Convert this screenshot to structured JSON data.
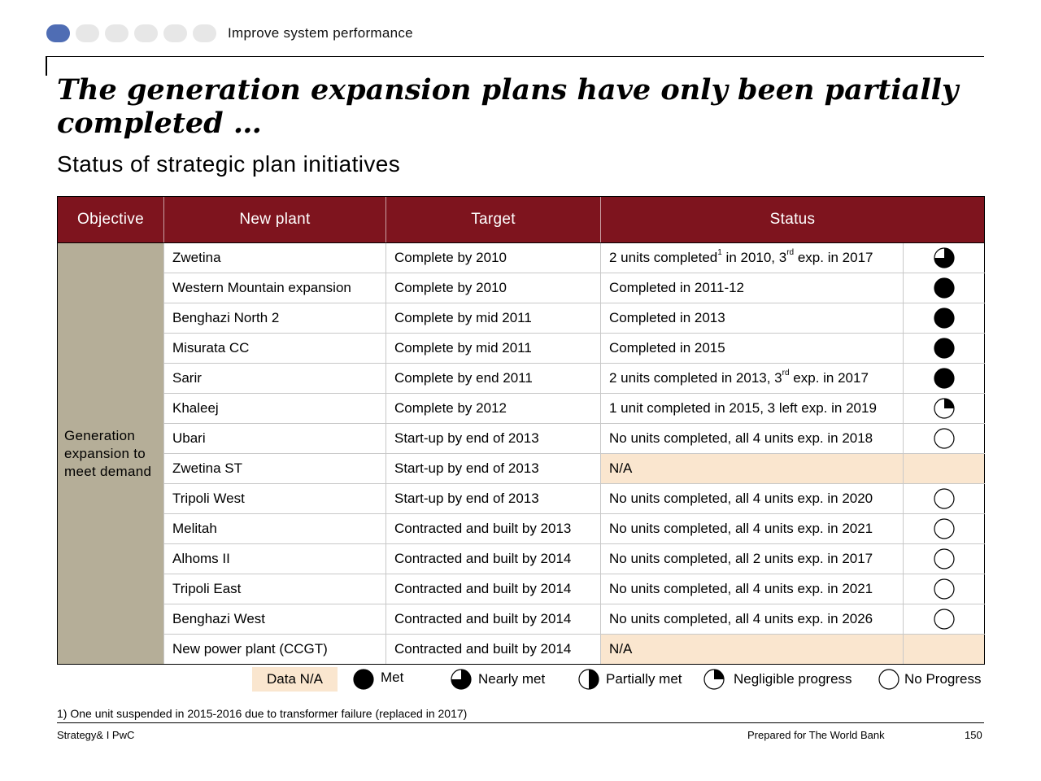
{
  "tracker": {
    "steps": [
      true,
      false,
      false,
      false,
      false,
      false
    ],
    "label": "Improve system performance",
    "active_color": "#4f6db4",
    "inactive_color": "#e7e7e7"
  },
  "title": "The generation expansion plans have only been partially completed …",
  "subtitle": "Status of strategic plan initiatives",
  "table": {
    "headers": [
      "Objective",
      "New plant",
      "Target",
      "Status"
    ],
    "objective": "Generation expansion to meet demand",
    "header_color": "#7e141e",
    "objective_color": "#b5ae98",
    "na_color": "#fae6cf",
    "rows": [
      {
        "plant": "Zwetina",
        "target": "Complete by 2010",
        "status_parts": [
          "2 units completed",
          "1",
          " in 2010, 3",
          "rd",
          " exp. in 2017"
        ],
        "rating": "nearly-met"
      },
      {
        "plant": "Western Mountain expansion",
        "target": "Complete by 2010",
        "status_parts": [
          "Completed in 2011-12"
        ],
        "rating": "met"
      },
      {
        "plant": "Benghazi North 2",
        "target": "Complete by mid 2011",
        "status_parts": [
          "Completed in 2013"
        ],
        "rating": "met"
      },
      {
        "plant": "Misurata CC",
        "target": "Complete by mid 2011",
        "status_parts": [
          "Completed in 2015"
        ],
        "rating": "met"
      },
      {
        "plant": "Sarir",
        "target": "Complete by end 2011",
        "status_parts": [
          "2 units completed in 2013, 3",
          "rd",
          " exp. in 2017"
        ],
        "rating": "met"
      },
      {
        "plant": "Khaleej",
        "target": "Complete by 2012",
        "status_parts": [
          "1 unit completed in 2015, 3 left exp. in 2019"
        ],
        "rating": "negligible-progress"
      },
      {
        "plant": "Ubari",
        "target": "Start-up by end of 2013",
        "status_parts": [
          "No units completed, all 4 units exp. in 2018"
        ],
        "rating": "no-progress"
      },
      {
        "plant": "Zwetina ST",
        "target": "Start-up by end of 2013",
        "status_parts": [
          "N/A"
        ],
        "rating": "data-na"
      },
      {
        "plant": "Tripoli West",
        "target": "Start-up by end of 2013",
        "status_parts": [
          "No units completed, all 4 units exp. in 2020"
        ],
        "rating": "no-progress"
      },
      {
        "plant": "Melitah",
        "target": "Contracted and built by 2013",
        "status_parts": [
          "No units completed, all 4 units exp. in 2021"
        ],
        "rating": "no-progress"
      },
      {
        "plant": "Alhoms II",
        "target": "Contracted and built by 2014",
        "status_parts": [
          "No units completed, all 2 units exp. in 2017"
        ],
        "rating": "no-progress"
      },
      {
        "plant": "Tripoli East",
        "target": "Contracted and built by 2014",
        "status_parts": [
          "No units completed, all 4 units exp. in 2021"
        ],
        "rating": "no-progress"
      },
      {
        "plant": "Benghazi West",
        "target": "Contracted and built by 2014",
        "status_parts": [
          "No units completed, all 4 units exp. in 2026"
        ],
        "rating": "no-progress"
      },
      {
        "plant": "New power plant (CCGT)",
        "target": "Contracted and built by 2014",
        "status_parts": [
          "N/A"
        ],
        "rating": "data-na"
      }
    ]
  },
  "legend": {
    "data_na": "Data N/A",
    "items": [
      {
        "rating": "met",
        "label": "Met"
      },
      {
        "rating": "nearly-met",
        "label": "Nearly met"
      },
      {
        "rating": "partially-met",
        "label": "Partially met"
      },
      {
        "rating": "negligible-progress",
        "label": "Negligible progress"
      },
      {
        "rating": "no-progress",
        "label": "No Progress"
      }
    ]
  },
  "footnote": "1) One unit suspended in 2015-2016 due to transformer failure (replaced in 2017)",
  "footer": {
    "left": "Strategy& I PwC",
    "prepared_for": "Prepared for The World Bank",
    "page": "150"
  }
}
